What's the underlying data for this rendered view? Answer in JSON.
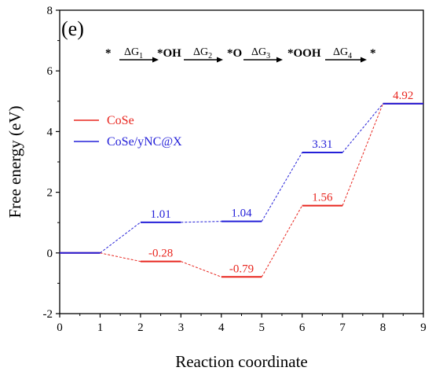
{
  "chart_data": {
    "type": "line",
    "panel_label": "(e)",
    "xlabel": "Reaction coordinate",
    "ylabel": "Free energy (eV)",
    "xlim": [
      0,
      9
    ],
    "ylim": [
      -2,
      8
    ],
    "xticks": [
      "0",
      "1",
      "2",
      "3",
      "4",
      "5",
      "6",
      "7",
      "8",
      "9"
    ],
    "yticks": [
      "-2",
      "0",
      "2",
      "4",
      "6",
      "8"
    ],
    "grid": false,
    "legend_placement": "upper-left",
    "series": [
      {
        "name": "CoSe",
        "color": "#e8261f",
        "levels": [
          {
            "x": [
              0,
              1
            ],
            "y": 0,
            "label": ""
          },
          {
            "x": [
              2,
              3
            ],
            "y": -0.28,
            "label": "-0.28"
          },
          {
            "x": [
              4,
              5
            ],
            "y": -0.79,
            "label": "-0.79"
          },
          {
            "x": [
              6,
              7
            ],
            "y": 1.56,
            "label": "1.56"
          },
          {
            "x": [
              8,
              9
            ],
            "y": 4.92,
            "label": "4.92"
          }
        ]
      },
      {
        "name": "CoSe/yNC@X",
        "color": "#2420d8",
        "levels": [
          {
            "x": [
              0,
              1
            ],
            "y": 0,
            "label": ""
          },
          {
            "x": [
              2,
              3
            ],
            "y": 1.01,
            "label": "1.01"
          },
          {
            "x": [
              4,
              5
            ],
            "y": 1.04,
            "label": "1.04"
          },
          {
            "x": [
              6,
              7
            ],
            "y": 3.31,
            "label": "3.31"
          },
          {
            "x": [
              8,
              9
            ],
            "y": 4.92,
            "label": ""
          }
        ]
      }
    ],
    "reaction_scheme": {
      "species": [
        "*",
        "*OH",
        "*O",
        "*OOH",
        "*"
      ],
      "steps": [
        {
          "symbol": "ΔG",
          "sub": "1"
        },
        {
          "symbol": "ΔG",
          "sub": "2"
        },
        {
          "symbol": "ΔG",
          "sub": "3"
        },
        {
          "symbol": "ΔG",
          "sub": "4"
        }
      ]
    }
  }
}
